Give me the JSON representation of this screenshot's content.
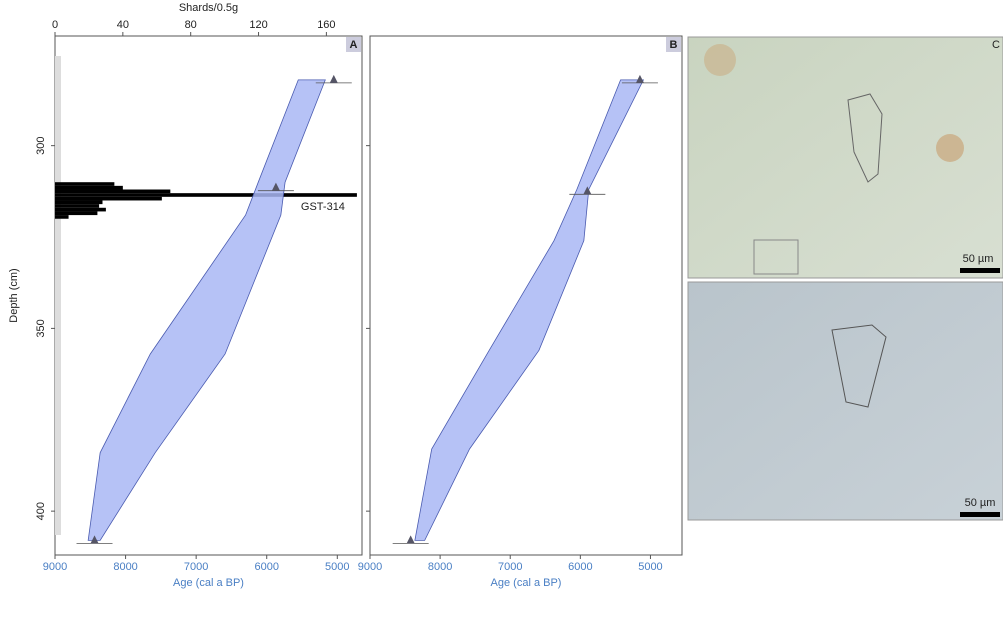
{
  "chart_data": [
    {
      "type": "envelope",
      "panel_label": "A",
      "xlabel": "Age (cal a BP)",
      "ylabel": "Depth (cm)",
      "xlim": [
        9000,
        4650
      ],
      "xticks": [
        9000,
        8000,
        7000,
        6000,
        5000
      ],
      "ylim": [
        270,
        412
      ],
      "yticks": [
        300,
        350,
        400
      ],
      "ytick_labels": true,
      "color": "#a9b7f5",
      "edge_color": "#4a5bb0",
      "depths": [
        282,
        310,
        319,
        357,
        384,
        408
      ],
      "younger": [
        5170,
        5740,
        5800,
        6590,
        7580,
        8360
      ],
      "older": [
        5553,
        6120,
        6300,
        7650,
        8360,
        8530
      ],
      "dates": {
        "depths": [
          282,
          311.5,
          408
        ],
        "ages": [
          5050,
          5870,
          8440
        ]
      },
      "histogram": {
        "xlabel": "Shards/0.5g",
        "x2lim": [
          0,
          181
        ],
        "x2ticks": [
          0,
          40,
          80,
          120,
          160
        ],
        "bins": [
          310,
          311,
          312,
          313,
          314,
          315,
          316,
          317,
          318,
          319,
          320
        ],
        "counts": [
          35,
          40,
          68,
          178,
          63,
          28,
          26,
          30,
          25,
          8
        ],
        "annotation": "GST-314"
      }
    },
    {
      "type": "envelope",
      "panel_label": "B",
      "xlabel": "Age (cal a BP)",
      "xlim": [
        9000,
        4550
      ],
      "xticks": [
        9000,
        8000,
        7000,
        6000,
        5000
      ],
      "ylim": [
        270,
        412
      ],
      "yticks": [
        300,
        350,
        400
      ],
      "ytick_labels": false,
      "color": "#a9b7f5",
      "edge_color": "#4a5bb0",
      "depths": [
        282,
        312,
        326,
        356,
        383,
        408
      ],
      "younger": [
        5100,
        5880,
        5950,
        6590,
        7580,
        8220
      ],
      "older": [
        5426,
        6050,
        6376,
        7300,
        8120,
        8360
      ],
      "dates": {
        "depths": [
          282,
          312.5,
          408
        ],
        "ages": [
          5150,
          5900,
          8420
        ]
      }
    }
  ],
  "micrographs": {
    "panel_label": "C",
    "scale_labels": [
      "50 µm",
      "50 µm"
    ]
  }
}
